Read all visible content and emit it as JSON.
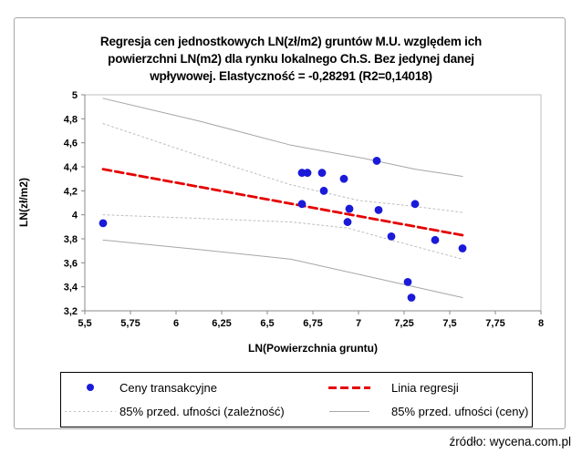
{
  "title_lines": [
    "Regresja cen jednostkowych LN(zł/m2) gruntów M.U. względem ich",
    "powierzchni LN(m2) dla rynku lokalnego Ch.S. Bez jedynej danej",
    "wpływowej. Elastyczność = -0,28291 (R2=0,14018)"
  ],
  "source_note": "źródło: wycena.com.pl",
  "chart_data": {
    "type": "scatter",
    "title": "Regresja cen jednostkowych LN(zł/m2) gruntów M.U. względem ich powierzchni LN(m2) dla rynku lokalnego Ch.S. Bez jedynej danej wpływowej. Elastyczność = -0,28291 (R2=0,14018)",
    "xlabel": "LN(Powierzchnia gruntu)",
    "ylabel": "LN(zł/m2)",
    "xlim": [
      5.5,
      8
    ],
    "xtick_step": 0.25,
    "ylim": [
      3.2,
      5
    ],
    "ytick_step": 0.2,
    "decimal_separator": ",",
    "grid": false,
    "legend_position": "bottom",
    "elasticity": "-0,28291",
    "r2": "0,14018",
    "series": [
      {
        "id": "transaction-prices",
        "name": "Ceny transakcyjne",
        "kind": "scatter",
        "color": "#1a1ad9",
        "points": [
          [
            5.6,
            3.93
          ],
          [
            6.69,
            4.35
          ],
          [
            6.72,
            4.35
          ],
          [
            6.8,
            4.35
          ],
          [
            6.92,
            4.3
          ],
          [
            6.81,
            4.2
          ],
          [
            6.69,
            4.09
          ],
          [
            6.95,
            4.05
          ],
          [
            7.11,
            4.04
          ],
          [
            7.31,
            4.09
          ],
          [
            6.94,
            3.94
          ],
          [
            7.1,
            4.45
          ],
          [
            7.18,
            3.82
          ],
          [
            7.42,
            3.79
          ],
          [
            7.57,
            3.72
          ],
          [
            7.27,
            3.44
          ],
          [
            7.29,
            3.31
          ]
        ]
      },
      {
        "id": "regression-line",
        "name": "Linia regresji",
        "kind": "line",
        "color": "#e60000",
        "width": 2.8,
        "dash": "9,4.5",
        "lines": [
          [
            [
              5.6,
              4.38
            ],
            [
              7.57,
              3.83
            ]
          ]
        ]
      },
      {
        "id": "conf-dependence",
        "name": "85% przed. ufności (zależność)",
        "kind": "line",
        "color": "#bdbdbd",
        "width": 1,
        "dash": "2,3",
        "lines": [
          [
            [
              5.6,
              4.76
            ],
            [
              6.13,
              4.49
            ],
            [
              6.63,
              4.25
            ],
            [
              7.0,
              4.12
            ],
            [
              7.31,
              4.07
            ],
            [
              7.57,
              4.02
            ]
          ],
          [
            [
              5.6,
              4.0
            ],
            [
              6.13,
              3.97
            ],
            [
              6.63,
              3.94
            ],
            [
              6.94,
              3.89
            ],
            [
              7.13,
              3.81
            ],
            [
              7.57,
              3.63
            ]
          ]
        ]
      },
      {
        "id": "conf-prices",
        "name": "85% przed. ufności (ceny)",
        "kind": "line",
        "color": "#a6a6a6",
        "width": 1,
        "dash": "",
        "lines": [
          [
            [
              5.6,
              4.97
            ],
            [
              6.13,
              4.78
            ],
            [
              6.63,
              4.58
            ],
            [
              7.03,
              4.47
            ],
            [
              7.31,
              4.38
            ],
            [
              7.57,
              4.32
            ]
          ],
          [
            [
              5.6,
              3.79
            ],
            [
              6.13,
              3.71
            ],
            [
              6.63,
              3.63
            ],
            [
              7.13,
              3.46
            ],
            [
              7.57,
              3.31
            ]
          ]
        ]
      }
    ]
  },
  "legend": {
    "items": [
      {
        "label": "Ceny transakcyjne",
        "marker": "point"
      },
      {
        "label": "Linia regresji",
        "marker": "dashed-line"
      },
      {
        "label": "85% przed. ufności (zależność)",
        "marker": "dotted-line"
      },
      {
        "label": "85% przed. ufności (ceny)",
        "marker": "solid-line"
      }
    ]
  }
}
